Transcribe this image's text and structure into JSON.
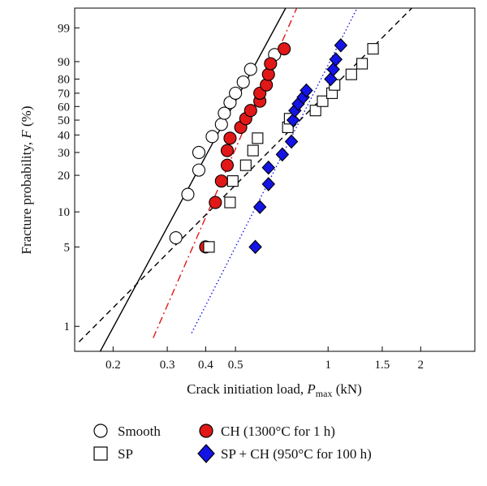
{
  "chart_data": {
    "type": "scatter",
    "xscale": "log",
    "yscale": "weibull-probability",
    "xlim": [
      0.15,
      3.0
    ],
    "ylim": [
      0.6,
      99.9
    ],
    "xlabel_main": "Crack initiation load, ",
    "xlabel_var": "P",
    "xlabel_sub": "max",
    "xlabel_unit": " (kN)",
    "ylabel_main": "Fracture probability, ",
    "ylabel_var": "F",
    "ylabel_unit": " (%)",
    "x_ticks": [
      0.2,
      0.3,
      0.4,
      0.5,
      1,
      1.5,
      2
    ],
    "x_tick_labels": [
      "0.2",
      "0.3",
      "0.4",
      "0.5",
      "1",
      "1.5",
      "2"
    ],
    "y_ticks": [
      1,
      5,
      10,
      20,
      30,
      40,
      50,
      60,
      70,
      80,
      90,
      99
    ],
    "y_tick_labels": [
      "1",
      "5",
      "10",
      "20",
      "30",
      "40",
      "50",
      "60",
      "70",
      "80",
      "90",
      "99"
    ],
    "series": [
      {
        "name": "Smooth",
        "marker": "circle-open",
        "x": [
          0.32,
          0.35,
          0.38,
          0.38,
          0.42,
          0.45,
          0.46,
          0.48,
          0.5,
          0.53,
          0.56,
          0.67
        ],
        "y": [
          6,
          14,
          22,
          30,
          39,
          47,
          55,
          63,
          70,
          78,
          86,
          93
        ],
        "fit_line": {
          "style": "solid",
          "color": "#000000",
          "x": [
            0.18,
            0.9
          ]
        }
      },
      {
        "name": "CH (1300°C for 1 h)",
        "marker": "circle-filled",
        "color": "#e01818",
        "x": [
          0.4,
          0.43,
          0.45,
          0.47,
          0.47,
          0.48,
          0.52,
          0.54,
          0.56,
          0.6,
          0.6,
          0.63,
          0.64,
          0.65,
          0.72
        ],
        "y": [
          5,
          12,
          18,
          24,
          31,
          38,
          45,
          51,
          57,
          64,
          70,
          76,
          83,
          89,
          95
        ],
        "fit_line": {
          "style": "dashdot",
          "color": "#e01818",
          "x": [
            0.27,
            0.79
          ]
        }
      },
      {
        "name": "SP",
        "marker": "square-open",
        "x": [
          0.41,
          0.48,
          0.49,
          0.54,
          0.57,
          0.59,
          0.74,
          0.75,
          0.91,
          0.96,
          1.03,
          1.05,
          1.19,
          1.29,
          1.4
        ],
        "y": [
          5,
          12,
          18,
          24,
          31,
          38,
          45,
          51,
          57,
          64,
          70,
          76,
          83,
          89,
          95
        ],
        "fit_line": {
          "style": "dashed",
          "color": "#000000",
          "x": [
            0.155,
            2.55
          ]
        }
      },
      {
        "name": "SP + CH (950°C for 100 h)",
        "marker": "diamond-filled",
        "color": "#1414e6",
        "x": [
          0.58,
          0.6,
          0.64,
          0.64,
          0.71,
          0.76,
          0.77,
          0.78,
          0.8,
          0.83,
          0.85,
          1.02,
          1.04,
          1.06,
          1.1
        ],
        "y": [
          5,
          11,
          17,
          23,
          29,
          36,
          50,
          57,
          62,
          67,
          72,
          80,
          86,
          91,
          96
        ],
        "fit_line": {
          "style": "dotted",
          "color": "#1414e6",
          "x": [
            0.36,
            1.3
          ]
        }
      }
    ],
    "legend_position": "below-plot"
  },
  "legend": {
    "smooth": "Smooth",
    "sp": "SP",
    "ch": "CH (1300°C for 1 h)",
    "spch": "SP + CH (950°C for 100 h)"
  }
}
